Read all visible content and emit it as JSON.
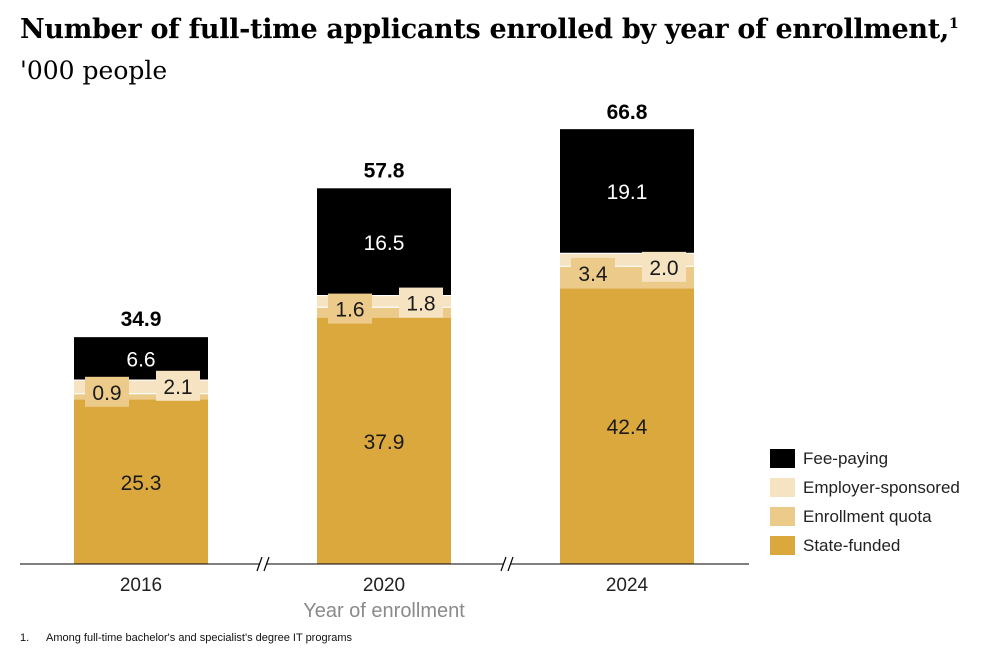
{
  "title": "Number of full-time applicants enrolled by year of enrollment,",
  "title_footnote_marker": "1",
  "subtitle": "'000 people",
  "footnote": {
    "number": "1.",
    "text": "Among full-time bachelor's and specialist's degree IT programs"
  },
  "chart_data": {
    "type": "bar",
    "stacked": true,
    "categories": [
      "2016",
      "2020",
      "2024"
    ],
    "xlabel": "Year of enrollment",
    "ylabel": "",
    "ylim": [
      0,
      70
    ],
    "grid": false,
    "axis_breaks": true,
    "legend_position": "right",
    "series": [
      {
        "name": "State-funded",
        "color": "#DBA83D",
        "values": [
          25.3,
          37.9,
          42.4
        ],
        "value_labels": [
          "25.3",
          "37.9",
          "42.4"
        ]
      },
      {
        "name": "Enrollment quota",
        "color": "#ECCB8A",
        "values": [
          0.9,
          1.6,
          3.4
        ],
        "value_labels": [
          "0.9",
          "1.6",
          "3.4"
        ]
      },
      {
        "name": "Employer-sponsored",
        "color": "#F6E3C1",
        "values": [
          2.1,
          1.8,
          2.0
        ],
        "value_labels": [
          "2.1",
          "1.8",
          "2.0"
        ]
      },
      {
        "name": "Fee-paying",
        "color": "#000000",
        "values": [
          6.6,
          16.5,
          19.1
        ],
        "value_labels": [
          "6.6",
          "16.5",
          "19.1"
        ]
      }
    ],
    "totals": [
      34.9,
      57.8,
      66.8
    ],
    "total_labels": [
      "34.9",
      "57.8",
      "66.8"
    ],
    "legend_order": [
      "Fee-paying",
      "Employer-sponsored",
      "Enrollment quota",
      "State-funded"
    ]
  }
}
